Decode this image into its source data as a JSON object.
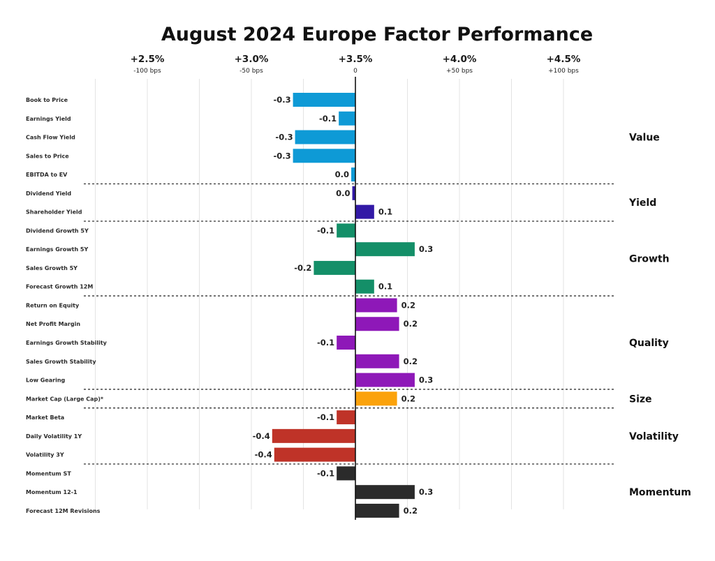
{
  "chart_data": {
    "type": "bar",
    "orientation": "horizontal",
    "title": "August 2024 Europe Factor Performance",
    "baseline_label": "+3.5%",
    "xlim": [
      -1.25,
      1.25
    ],
    "x_ticks": [
      {
        "value": -1.0,
        "label": "+2.5%",
        "sublabel": "-100 bps"
      },
      {
        "value": -0.5,
        "label": "+3.0%",
        "sublabel": "-50 bps"
      },
      {
        "value": 0.0,
        "label": "+3.5%",
        "sublabel": "0"
      },
      {
        "value": 0.5,
        "label": "+4.0%",
        "sublabel": "+50 bps"
      },
      {
        "value": 1.0,
        "label": "+4.5%",
        "sublabel": "+100 bps"
      }
    ],
    "gridlines": [
      -1.25,
      -1.0,
      -0.75,
      -0.5,
      -0.25,
      0.25,
      0.5,
      0.75,
      1.0
    ],
    "groups": [
      {
        "name": "Value",
        "color": "#0e9ad6",
        "factors": [
          {
            "label": "Book to Price",
            "value": -0.3,
            "display": "-0.3"
          },
          {
            "label": "Earnings Yield",
            "value": -0.08,
            "display": "-0.1"
          },
          {
            "label": "Cash Flow Yield",
            "value": -0.29,
            "display": "-0.3"
          },
          {
            "label": "Sales to Price",
            "value": -0.3,
            "display": "-0.3"
          },
          {
            "label": "EBITDA to EV",
            "value": -0.02,
            "display": "0.0"
          }
        ]
      },
      {
        "name": "Yield",
        "color": "#3219a6",
        "factors": [
          {
            "label": "Dividend Yield",
            "value": -0.015,
            "display": "0.0"
          },
          {
            "label": "Shareholder Yield",
            "value": 0.09,
            "display": "0.1"
          }
        ]
      },
      {
        "name": "Growth",
        "color": "#148f68",
        "factors": [
          {
            "label": "Dividend Growth 5Y",
            "value": -0.09,
            "display": "-0.1"
          },
          {
            "label": "Earnings Growth 5Y",
            "value": 0.285,
            "display": "0.3"
          },
          {
            "label": "Sales Growth 5Y",
            "value": -0.2,
            "display": "-0.2"
          },
          {
            "label": "Forecast Growth 12M",
            "value": 0.09,
            "display": "0.1"
          }
        ]
      },
      {
        "name": "Quality",
        "color": "#8e18b8",
        "factors": [
          {
            "label": "Return on Equity",
            "value": 0.2,
            "display": "0.2"
          },
          {
            "label": "Net Profit Margin",
            "value": 0.21,
            "display": "0.2"
          },
          {
            "label": "Earnings Growth Stability",
            "value": -0.09,
            "display": "-0.1"
          },
          {
            "label": "Sales Growth Stability",
            "value": 0.21,
            "display": "0.2"
          },
          {
            "label": "Low Gearing",
            "value": 0.285,
            "display": "0.3"
          }
        ]
      },
      {
        "name": "Size",
        "color": "#fba20b",
        "factors": [
          {
            "label": "Market Cap (Large Cap)*",
            "value": 0.2,
            "display": "0.2"
          }
        ]
      },
      {
        "name": "Volatility",
        "color": "#bf3328",
        "factors": [
          {
            "label": "Market Beta",
            "value": -0.09,
            "display": "-0.1"
          },
          {
            "label": "Daily Volatility 1Y",
            "value": -0.4,
            "display": "-0.4"
          },
          {
            "label": "Volatility 3Y",
            "value": -0.39,
            "display": "-0.4"
          }
        ]
      },
      {
        "name": "Momentum",
        "color": "#2b2b2b",
        "factors": [
          {
            "label": "Momentum ST",
            "value": -0.09,
            "display": "-0.1"
          },
          {
            "label": "Momentum 12-1",
            "value": 0.285,
            "display": "0.3"
          },
          {
            "label": "Forecast 12M Revisions",
            "value": 0.21,
            "display": "0.2"
          }
        ]
      }
    ]
  }
}
